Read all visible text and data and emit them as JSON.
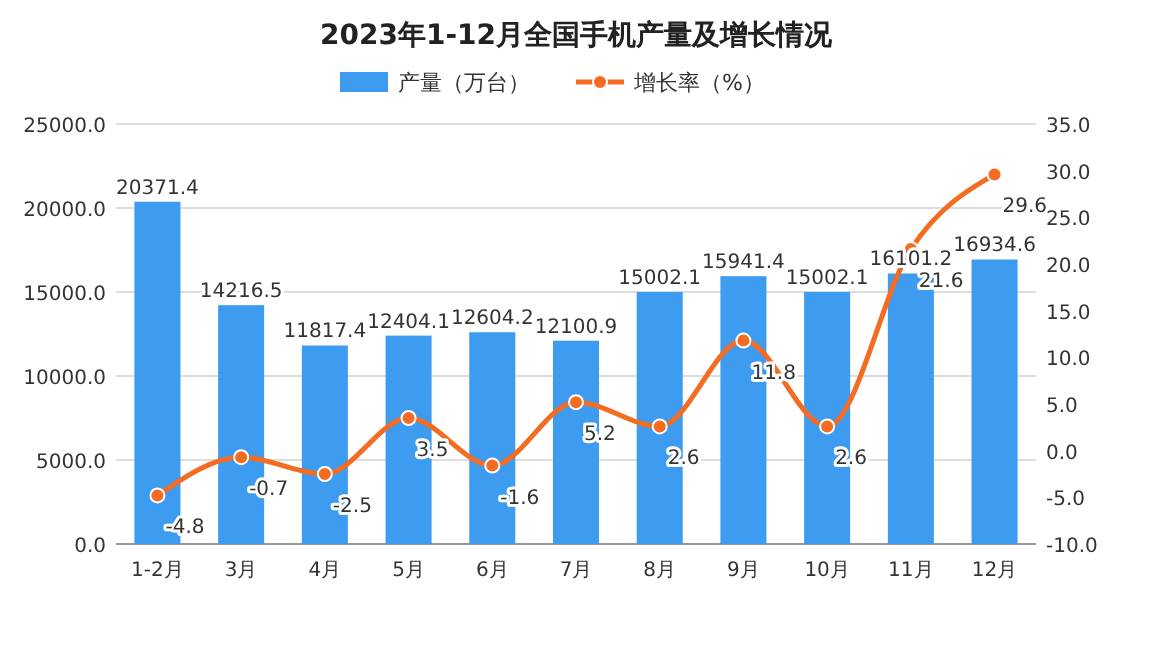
{
  "chart_data": {
    "type": "bar",
    "title": "2023年1-12月全国手机产量及增长情况",
    "categories": [
      "1-2月",
      "3月",
      "4月",
      "5月",
      "6月",
      "7月",
      "8月",
      "9月",
      "10月",
      "11月",
      "12月"
    ],
    "series": [
      {
        "name": "产量（万台）",
        "color": "#3d9cf0",
        "values": [
          20371.4,
          14216.5,
          11817.4,
          12404.1,
          12604.2,
          12100.9,
          15002.1,
          15941.4,
          15002.1,
          16101.2,
          16934.6
        ]
      },
      {
        "type": "line",
        "name": "增长率（%）",
        "color": "#f36c21",
        "axis": "y2",
        "values": [
          -4.8,
          -0.7,
          -2.5,
          3.5,
          -1.6,
          5.2,
          2.6,
          11.8,
          2.6,
          21.6,
          29.6
        ]
      }
    ],
    "ylim": [
      0,
      25000
    ],
    "yticks": [
      {
        "value": 0,
        "label": "0.0"
      },
      {
        "value": 5000,
        "label": "5000.0"
      },
      {
        "value": 10000,
        "label": "10000.0"
      },
      {
        "value": 15000,
        "label": "15000.0"
      },
      {
        "value": 20000,
        "label": "20000.0"
      },
      {
        "value": 25000,
        "label": "25000.0"
      }
    ],
    "y2lim": [
      -10,
      35
    ],
    "y2ticks": [
      {
        "value": -10,
        "label": "-10.0"
      },
      {
        "value": -5,
        "label": "-5.0"
      },
      {
        "value": 0,
        "label": "0.0"
      },
      {
        "value": 5,
        "label": "5.0"
      },
      {
        "value": 10,
        "label": "10.0"
      },
      {
        "value": 15,
        "label": "15.0"
      },
      {
        "value": 20,
        "label": "20.0"
      },
      {
        "value": 25,
        "label": "25.0"
      },
      {
        "value": 30,
        "label": "30.0"
      },
      {
        "value": 35,
        "label": "35.0"
      }
    ],
    "grid": "y",
    "legend": "top",
    "marker": "circle",
    "data_labels": true
  }
}
